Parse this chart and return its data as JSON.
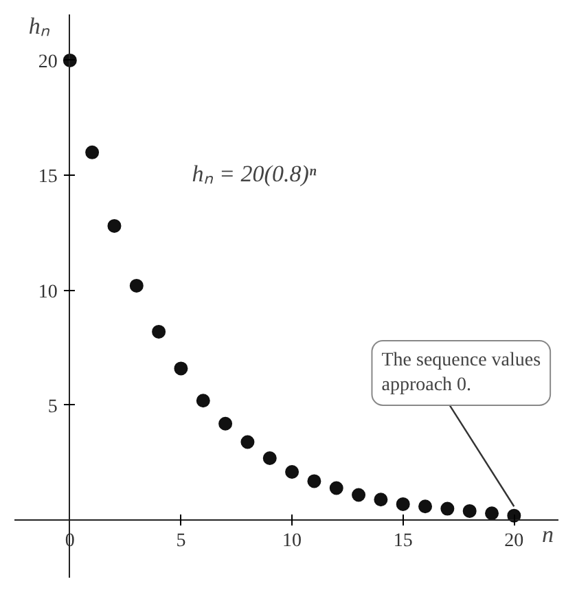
{
  "chart_data": {
    "type": "scatter",
    "xlabel": "n",
    "ylabel": "hₙ",
    "x": [
      0,
      1,
      2,
      3,
      4,
      5,
      6,
      7,
      8,
      9,
      10,
      11,
      12,
      13,
      14,
      15,
      16,
      17,
      18,
      19,
      20
    ],
    "series": [
      {
        "color": "#111111",
        "values": [
          20,
          16,
          12.8,
          10.2,
          8.2,
          6.6,
          5.2,
          4.2,
          3.4,
          2.7,
          2.1,
          1.7,
          1.4,
          1.1,
          0.9,
          0.7,
          0.6,
          0.5,
          0.4,
          0.3,
          0.2
        ]
      }
    ],
    "xlim": [
      -2.5,
      22
    ],
    "ylim": [
      -2.5,
      22
    ],
    "xticks": [
      0,
      5,
      10,
      15,
      20
    ],
    "yticks": [
      5,
      10,
      15,
      20
    ],
    "grid": false,
    "marker": "circle",
    "annotations": [
      "hₙ = 20(0.8)ⁿ",
      {
        "text": "The sequence values approach 0.",
        "x": 20,
        "y": 0.2
      }
    ]
  }
}
